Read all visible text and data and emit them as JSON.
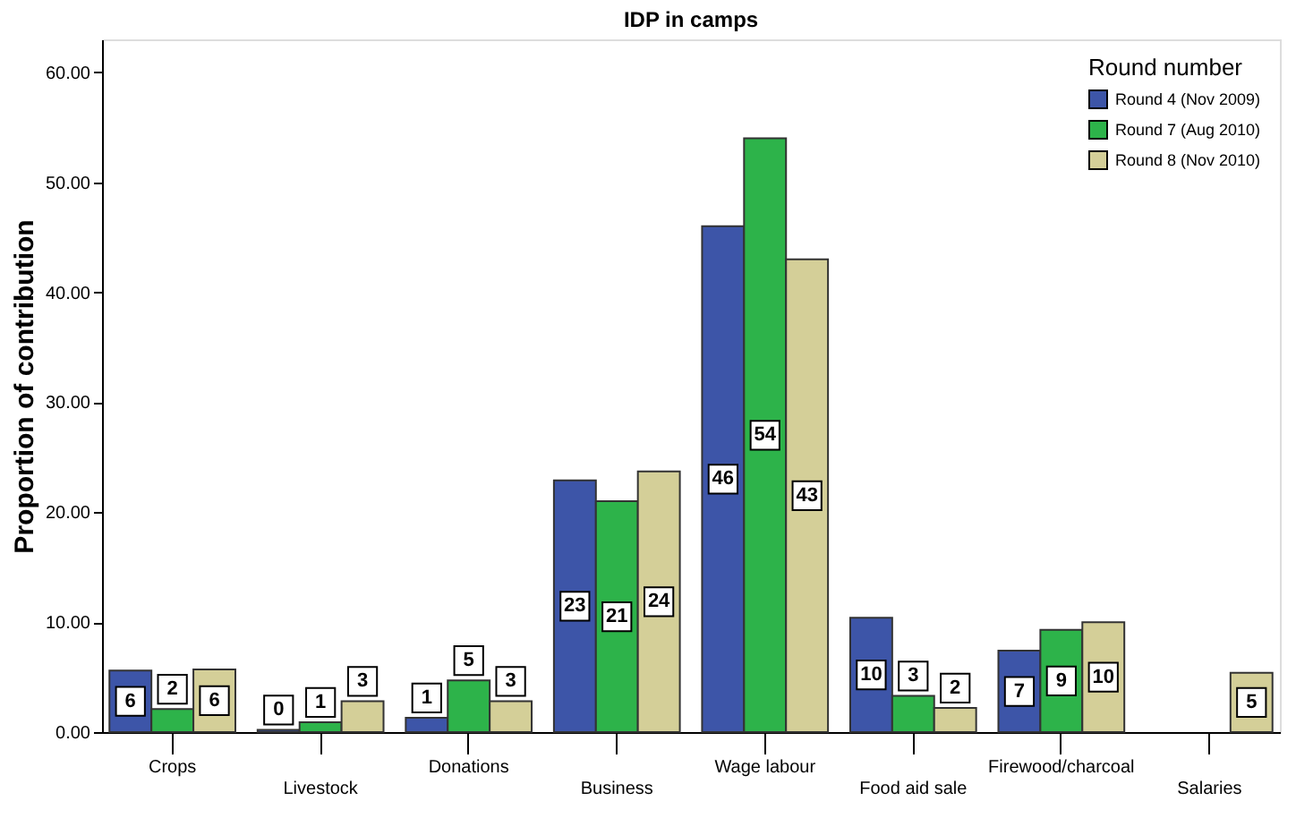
{
  "chart_data": {
    "type": "bar",
    "title": "IDP in camps",
    "ylabel": "Proportion of contribution",
    "legend_title": "Round number",
    "legend": "top right",
    "grid": false,
    "categories": [
      "Crops",
      "Livestock",
      "Donations",
      "Business",
      "Wage labour",
      "Food aid sale",
      "Firewood/charcoal",
      "Salaries"
    ],
    "series": [
      {
        "name": "Round 4 (Nov 2009)",
        "color": "#3d55a8",
        "values": [
          5.6,
          0.2,
          1.3,
          22.9,
          46.0,
          10.4,
          7.4,
          null
        ],
        "value_labels": [
          "6",
          "0",
          "1",
          "23",
          "46",
          "10",
          "7",
          null
        ]
      },
      {
        "name": "Round 7 (Aug 2010)",
        "color": "#2db34a",
        "values": [
          2.1,
          0.9,
          4.7,
          21.0,
          54.0,
          3.3,
          9.3,
          null
        ],
        "value_labels": [
          "2",
          "1",
          "5",
          "21",
          "54",
          "3",
          "9",
          null
        ]
      },
      {
        "name": "Round 8 (Nov 2010)",
        "color": "#d4cf98",
        "values": [
          5.7,
          2.8,
          2.8,
          23.7,
          43.0,
          2.2,
          10.0,
          5.4
        ],
        "value_labels": [
          "6",
          "3",
          "3",
          "24",
          "43",
          "2",
          "10",
          "5"
        ]
      }
    ],
    "ylim": [
      0,
      63
    ],
    "yticks": [
      {
        "value": 0,
        "label": "0.00"
      },
      {
        "value": 10,
        "label": "10.00"
      },
      {
        "value": 20,
        "label": "20.00"
      },
      {
        "value": 30,
        "label": "30.00"
      },
      {
        "value": 40,
        "label": "40.00"
      },
      {
        "value": 50,
        "label": "50.00"
      },
      {
        "value": 60,
        "label": "60.00"
      }
    ]
  }
}
